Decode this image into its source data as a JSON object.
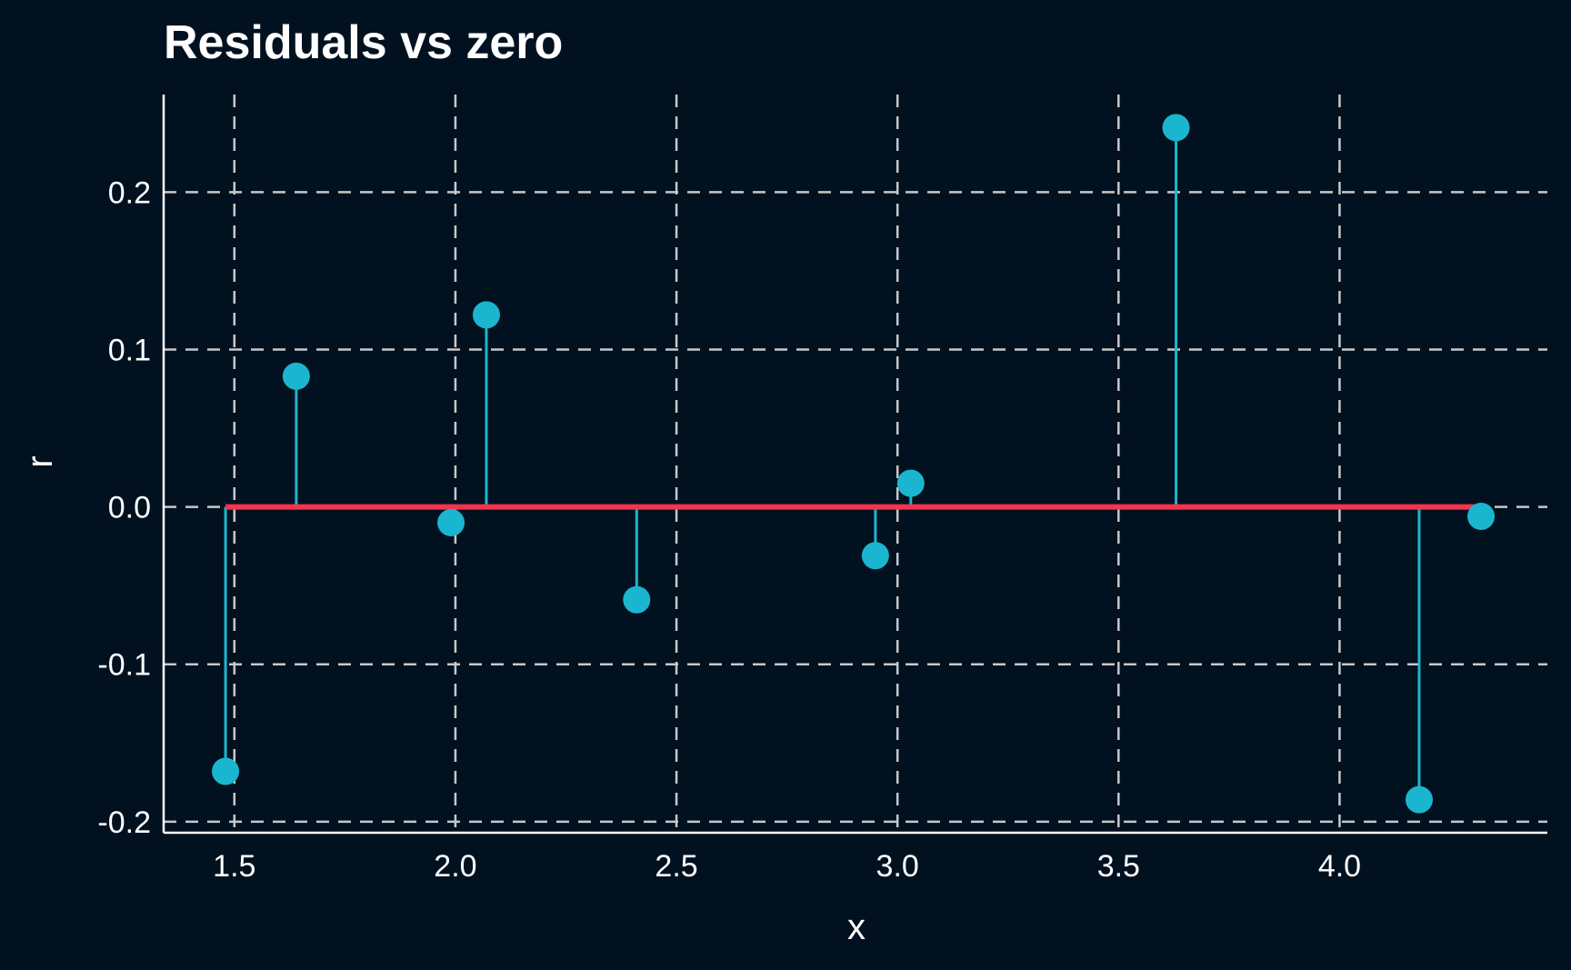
{
  "chart_data": {
    "type": "scatter",
    "title": "Residuals vs zero",
    "xlabel": "x",
    "ylabel": "r",
    "xlim": [
      1.34,
      4.47
    ],
    "ylim": [
      -0.207,
      0.262
    ],
    "x_ticks": [
      1.5,
      2.0,
      2.5,
      3.0,
      3.5,
      4.0
    ],
    "x_tick_labels": [
      "1.5",
      "2.0",
      "2.5",
      "3.0",
      "3.5",
      "4.0"
    ],
    "y_ticks": [
      -0.2,
      -0.1,
      0.0,
      0.1,
      0.2
    ],
    "y_tick_labels": [
      "-0.2",
      "-0.1",
      "0.0",
      "0.1",
      "0.2"
    ],
    "grid": true,
    "reference_line": {
      "y": 0.0,
      "x_from": 1.48,
      "x_to": 4.32
    },
    "series": [
      {
        "style": "stem",
        "points": [
          {
            "x": 1.48,
            "y": -0.168
          },
          {
            "x": 1.64,
            "y": 0.083
          },
          {
            "x": 1.99,
            "y": -0.01
          },
          {
            "x": 2.07,
            "y": 0.122
          },
          {
            "x": 2.41,
            "y": -0.059
          },
          {
            "x": 2.95,
            "y": -0.031
          },
          {
            "x": 3.03,
            "y": 0.015
          },
          {
            "x": 3.63,
            "y": 0.241
          },
          {
            "x": 4.18,
            "y": -0.186
          },
          {
            "x": 4.32,
            "y": -0.006
          }
        ]
      }
    ],
    "colors": {
      "background": "#02111f",
      "points": "#1ab6cf",
      "zero_line": "#f5334f",
      "grid": "#c8c8c8",
      "axis": "#ffffff",
      "text": "#ffffff"
    }
  }
}
